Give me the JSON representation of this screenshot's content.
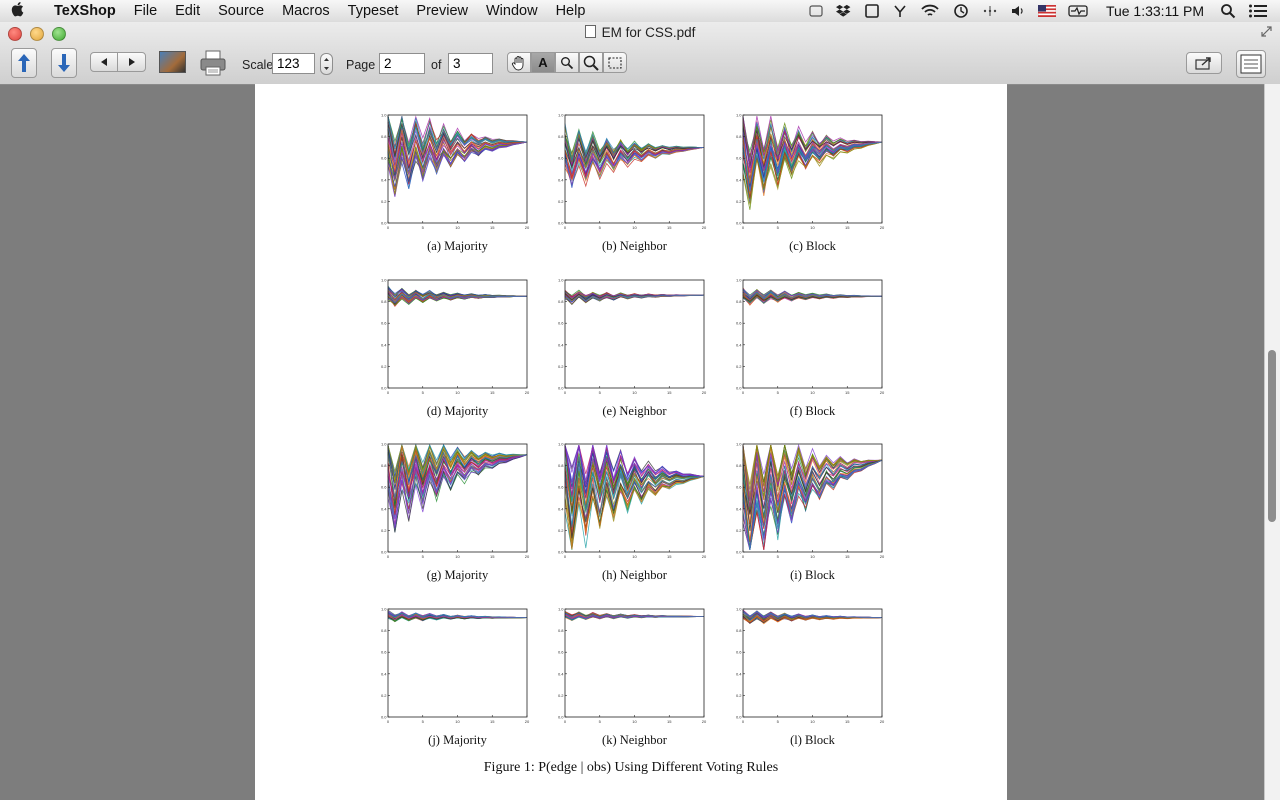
{
  "menubar": {
    "apple_icon": "apple-logo-icon",
    "app_name": "TeXShop",
    "menus": [
      "File",
      "Edit",
      "Source",
      "Macros",
      "Typeset",
      "Preview",
      "Window",
      "Help"
    ],
    "clock": "Tue 1:33:11 PM",
    "status_icons": [
      "window-icon",
      "dropbox-icon",
      "display-icon",
      "tool-icon",
      "wifi-icon",
      "time-machine-icon",
      "bluetooth-icon",
      "volume-icon",
      "us-flag-icon",
      "activity-icon",
      "spotlight-icon",
      "list-icon"
    ]
  },
  "window": {
    "title": "EM for CSS.pdf"
  },
  "toolbar": {
    "scale_label": "Scale",
    "scale_value": "123",
    "page_label": "Page",
    "page_value": "2",
    "of_label": "of",
    "total_pages": "3",
    "text_tool_label": "A"
  },
  "figure": {
    "caption": "Figure 1: P(edge | obs) Using Different Voting Rules",
    "panels": [
      {
        "caption": "(a) Majority"
      },
      {
        "caption": "(b) Neighbor"
      },
      {
        "caption": "(c) Block"
      },
      {
        "caption": "(d) Majority"
      },
      {
        "caption": "(e) Neighbor"
      },
      {
        "caption": "(f) Block"
      },
      {
        "caption": "(g) Majority"
      },
      {
        "caption": "(h) Neighbor"
      },
      {
        "caption": "(i) Block"
      },
      {
        "caption": "(j) Majority"
      },
      {
        "caption": "(k) Neighbor"
      },
      {
        "caption": "(l) Block"
      }
    ]
  },
  "chart_data": [
    {
      "type": "line",
      "title": "(a) Majority",
      "x": [
        0,
        20
      ],
      "xticks": [
        "0",
        "5",
        "10",
        "15",
        "20"
      ],
      "yticks": [
        "0.0",
        "0.2",
        "0.4",
        "0.6",
        "0.8",
        "1.0"
      ],
      "ylim": [
        0,
        1
      ],
      "y_start_range": [
        0.4,
        0.9
      ],
      "y_end": 0.75
    },
    {
      "type": "line",
      "title": "(b) Neighbor",
      "x": [
        0,
        20
      ],
      "xticks": [
        "0",
        "5",
        "10",
        "15",
        "20"
      ],
      "yticks": [
        "0.0",
        "0.2",
        "0.4",
        "0.6",
        "0.8",
        "1.0"
      ],
      "ylim": [
        0,
        1
      ],
      "y_start_range": [
        0.4,
        0.75
      ],
      "y_end": 0.7
    },
    {
      "type": "line",
      "title": "(c) Block",
      "x": [
        0,
        20
      ],
      "xticks": [
        "0",
        "5",
        "10",
        "15",
        "20"
      ],
      "yticks": [
        "0.0",
        "0.2",
        "0.4",
        "0.6",
        "0.8",
        "1.0"
      ],
      "ylim": [
        0,
        1
      ],
      "y_start_range": [
        0.3,
        0.85
      ],
      "y_end": 0.75
    },
    {
      "type": "line",
      "title": "(d) Majority",
      "x": [
        0,
        20
      ],
      "xticks": [
        "0",
        "5",
        "10",
        "15",
        "20"
      ],
      "yticks": [
        "0.0",
        "0.2",
        "0.4",
        "0.6",
        "0.8",
        "1.0"
      ],
      "ylim": [
        0,
        1
      ],
      "y_start_range": [
        0.8,
        0.9
      ],
      "y_end": 0.85
    },
    {
      "type": "line",
      "title": "(e) Neighbor",
      "x": [
        0,
        20
      ],
      "xticks": [
        "0",
        "5",
        "10",
        "15",
        "20"
      ],
      "yticks": [
        "0.0",
        "0.2",
        "0.4",
        "0.6",
        "0.8",
        "1.0"
      ],
      "ylim": [
        0,
        1
      ],
      "y_start_range": [
        0.8,
        0.88
      ],
      "y_end": 0.86
    },
    {
      "type": "line",
      "title": "(f) Block",
      "x": [
        0,
        20
      ],
      "xticks": [
        "0",
        "5",
        "10",
        "15",
        "20"
      ],
      "yticks": [
        "0.0",
        "0.2",
        "0.4",
        "0.6",
        "0.8",
        "1.0"
      ],
      "ylim": [
        0,
        1
      ],
      "y_start_range": [
        0.8,
        0.9
      ],
      "y_end": 0.85
    },
    {
      "type": "line",
      "title": "(g) Majority",
      "x": [
        0,
        20
      ],
      "xticks": [
        "0",
        "5",
        "10",
        "15",
        "20"
      ],
      "yticks": [
        "0.0",
        "0.2",
        "0.4",
        "0.6",
        "0.8",
        "1.0"
      ],
      "ylim": [
        0,
        1
      ],
      "y_start_range": [
        0.35,
        0.95
      ],
      "y_end": 0.9
    },
    {
      "type": "line",
      "title": "(h) Neighbor",
      "x": [
        0,
        20
      ],
      "xticks": [
        "0",
        "5",
        "10",
        "15",
        "20"
      ],
      "yticks": [
        "0.0",
        "0.2",
        "0.4",
        "0.6",
        "0.8",
        "1.0"
      ],
      "ylim": [
        0,
        1
      ],
      "y_start_range": [
        0.2,
        0.95
      ],
      "y_end": 0.7
    },
    {
      "type": "line",
      "title": "(i) Block",
      "x": [
        0,
        20
      ],
      "xticks": [
        "0",
        "5",
        "10",
        "15",
        "20"
      ],
      "yticks": [
        "0.0",
        "0.2",
        "0.4",
        "0.6",
        "0.8",
        "1.0"
      ],
      "ylim": [
        0,
        1
      ],
      "y_start_range": [
        0.1,
        0.95
      ],
      "y_end": 0.85
    },
    {
      "type": "line",
      "title": "(j) Majority",
      "x": [
        0,
        20
      ],
      "xticks": [
        "0",
        "5",
        "10",
        "15",
        "20"
      ],
      "yticks": [
        "0.0",
        "0.2",
        "0.4",
        "0.6",
        "0.8",
        "1.0"
      ],
      "ylim": [
        0,
        1
      ],
      "y_start_range": [
        0.9,
        0.96
      ],
      "y_end": 0.92
    },
    {
      "type": "line",
      "title": "(k) Neighbor",
      "x": [
        0,
        20
      ],
      "xticks": [
        "0",
        "5",
        "10",
        "15",
        "20"
      ],
      "yticks": [
        "0.0",
        "0.2",
        "0.4",
        "0.6",
        "0.8",
        "1.0"
      ],
      "ylim": [
        0,
        1
      ],
      "y_start_range": [
        0.91,
        0.96
      ],
      "y_end": 0.93
    },
    {
      "type": "line",
      "title": "(l) Block",
      "x": [
        0,
        20
      ],
      "xticks": [
        "0",
        "5",
        "10",
        "15",
        "20"
      ],
      "yticks": [
        "0.0",
        "0.2",
        "0.4",
        "0.6",
        "0.8",
        "1.0"
      ],
      "ylim": [
        0,
        1
      ],
      "y_start_range": [
        0.88,
        0.96
      ],
      "y_end": 0.92
    }
  ]
}
